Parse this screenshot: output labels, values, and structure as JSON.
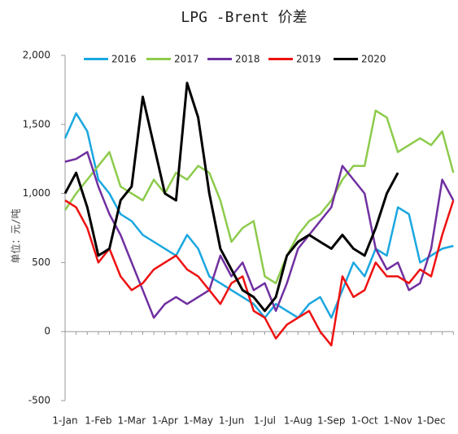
{
  "chart_data": {
    "type": "line",
    "title": "LPG -Brent 价差",
    "y_label": "单位：元/吨",
    "categories": [
      "1-Jan",
      null,
      null,
      "1-Feb",
      null,
      null,
      "1-Mar",
      null,
      null,
      "1-Apr",
      null,
      null,
      "1-May",
      null,
      null,
      "1-Jun",
      null,
      null,
      "1-Jul",
      null,
      null,
      "1-Aug",
      null,
      null,
      "1-Sep",
      null,
      null,
      "1-Oct",
      null,
      null,
      "1-Nov",
      null,
      null,
      "1-Dec",
      null,
      null
    ],
    "ylim": [
      -500,
      2000
    ],
    "yticks": [
      {
        "value": 2000,
        "label": "2,000"
      },
      {
        "value": 1500,
        "label": "1,500"
      },
      {
        "value": 1000,
        "label": "1,000"
      },
      500,
      0,
      -500
    ],
    "legend": "top",
    "series": [
      {
        "name": "2016",
        "color": "#1aa7e0",
        "values": [
          1400,
          1580,
          1450,
          1100,
          1000,
          850,
          800,
          700,
          650,
          600,
          550,
          700,
          600,
          400,
          350,
          300,
          250,
          200,
          100,
          200,
          150,
          100,
          200,
          250,
          100,
          300,
          500,
          400,
          600,
          550,
          900,
          850,
          500,
          550,
          600,
          620
        ]
      },
      {
        "name": "2017",
        "color": "#8dcb4c",
        "values": [
          880,
          1000,
          1100,
          1200,
          1300,
          1050,
          1000,
          950,
          1100,
          1000,
          1150,
          1100,
          1200,
          1150,
          950,
          650,
          750,
          800,
          400,
          350,
          550,
          700,
          800,
          850,
          950,
          1100,
          1200,
          1200,
          1600,
          1550,
          1300,
          1350,
          1400,
          1350,
          1450,
          1150
        ]
      },
      {
        "name": "2018",
        "color": "#7030a0",
        "values": [
          1230,
          1250,
          1300,
          1050,
          850,
          700,
          500,
          300,
          100,
          200,
          250,
          200,
          250,
          300,
          550,
          400,
          500,
          300,
          350,
          150,
          350,
          600,
          700,
          800,
          900,
          1200,
          1100,
          1000,
          600,
          450,
          500,
          300,
          350,
          600,
          1100,
          950
        ]
      },
      {
        "name": "2019",
        "color": "#ee1111",
        "values": [
          950,
          900,
          750,
          500,
          600,
          400,
          300,
          350,
          450,
          500,
          550,
          450,
          400,
          300,
          200,
          350,
          400,
          150,
          100,
          -50,
          50,
          100,
          150,
          0,
          -100,
          400,
          250,
          300,
          500,
          400,
          400,
          350,
          450,
          400,
          700,
          950
        ]
      },
      {
        "name": "2020",
        "color": "#000000",
        "values": [
          1000,
          1150,
          900,
          550,
          600,
          950,
          1050,
          1700,
          1350,
          1000,
          950,
          1800,
          1550,
          1000,
          600,
          450,
          300,
          250,
          150,
          250,
          550,
          650,
          700,
          650,
          600,
          700,
          600,
          550,
          750,
          1000,
          1150,
          null,
          null,
          null,
          null,
          null
        ]
      }
    ]
  }
}
